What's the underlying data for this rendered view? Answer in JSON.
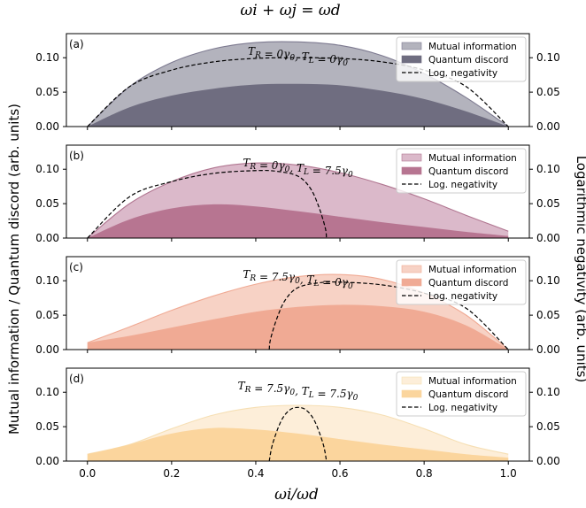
{
  "chart_data": {
    "type": "area",
    "title": "ωi + ωj = ωd",
    "xlabel": "ωi/ωd",
    "ylabel_left": "Mutual information / Quantum discord (arb. units)",
    "ylabel_right": "Logarithmic negativity (arb. units)",
    "xlim": [
      -0.05,
      1.05
    ],
    "ylim": [
      0,
      0.135
    ],
    "x_ticks": [
      "0.0",
      "0.2",
      "0.4",
      "0.6",
      "0.8",
      "1.0"
    ],
    "y_ticks": [
      "0.00",
      "0.05",
      "0.10"
    ],
    "legend_labels": [
      "Mutual information",
      "Quantum discord",
      "Log. negativity"
    ],
    "legend_position": "top-right",
    "panels": [
      {
        "label": "(a)",
        "temperature_label": "T_R = 0γ0, T_L = 0γ0",
        "colors": {
          "mutual": "#b3b3bd",
          "discord": "#6f6d80",
          "edge": "#7d7a90"
        },
        "x": [
          0.0,
          0.1,
          0.2,
          0.3,
          0.4,
          0.5,
          0.6,
          0.7,
          0.8,
          0.9,
          1.0
        ],
        "mutual_information": [
          0.0,
          0.058,
          0.093,
          0.113,
          0.122,
          0.123,
          0.118,
          0.103,
          0.077,
          0.042,
          0.0
        ],
        "quantum_discord": [
          0.0,
          0.028,
          0.045,
          0.055,
          0.061,
          0.062,
          0.06,
          0.052,
          0.04,
          0.022,
          0.0
        ],
        "log_negativity": [
          0.0,
          0.058,
          0.082,
          0.094,
          0.099,
          0.1,
          0.099,
          0.094,
          0.082,
          0.058,
          0.0
        ]
      },
      {
        "label": "(b)",
        "temperature_label": "T_R = 0γ0, T_L = 7.5γ0",
        "colors": {
          "mutual": "#dbb9ca",
          "discord": "#b77591",
          "edge": "#b07590"
        },
        "x": [
          0.0,
          0.1,
          0.2,
          0.3,
          0.4,
          0.5,
          0.6,
          0.7,
          0.8,
          0.9,
          1.0
        ],
        "mutual_information": [
          0.0,
          0.05,
          0.082,
          0.102,
          0.109,
          0.106,
          0.095,
          0.078,
          0.057,
          0.033,
          0.01
        ],
        "quantum_discord": [
          0.0,
          0.027,
          0.043,
          0.049,
          0.046,
          0.039,
          0.031,
          0.023,
          0.016,
          0.009,
          0.003
        ],
        "log_negativity_x": [
          0.0,
          0.1,
          0.2,
          0.3,
          0.4,
          0.45,
          0.5,
          0.53,
          0.55,
          0.565,
          0.568
        ],
        "log_negativity": [
          0.0,
          0.06,
          0.082,
          0.094,
          0.098,
          0.097,
          0.09,
          0.072,
          0.045,
          0.015,
          0.0
        ]
      },
      {
        "label": "(c)",
        "temperature_label": "T_R = 7.5γ0, T_L = 0γ0",
        "colors": {
          "mutual": "#f7d2c5",
          "discord": "#f0aa94",
          "edge": "#f0aa94"
        },
        "x": [
          0.0,
          0.1,
          0.2,
          0.3,
          0.4,
          0.5,
          0.6,
          0.7,
          0.8,
          0.9,
          1.0
        ],
        "mutual_information": [
          0.01,
          0.033,
          0.057,
          0.078,
          0.095,
          0.106,
          0.109,
          0.102,
          0.082,
          0.05,
          0.0
        ],
        "quantum_discord": [
          0.01,
          0.02,
          0.032,
          0.044,
          0.055,
          0.062,
          0.065,
          0.063,
          0.055,
          0.035,
          0.0
        ],
        "log_negativity_x": [
          0.432,
          0.435,
          0.45,
          0.47,
          0.5,
          0.55,
          0.6,
          0.7,
          0.8,
          0.9,
          1.0
        ],
        "log_negativity": [
          0.0,
          0.015,
          0.045,
          0.072,
          0.09,
          0.097,
          0.098,
          0.094,
          0.082,
          0.06,
          0.0
        ]
      },
      {
        "label": "(d)",
        "temperature_label": "T_R = 7.5γ0, T_L = 7.5γ0",
        "colors": {
          "mutual": "#fdeed9",
          "discord": "#fbd59d",
          "edge": "#f6dfb4"
        },
        "x": [
          0.0,
          0.1,
          0.2,
          0.3,
          0.4,
          0.5,
          0.6,
          0.7,
          0.8,
          0.9,
          1.0
        ],
        "mutual_information": [
          0.01,
          0.024,
          0.047,
          0.067,
          0.078,
          0.081,
          0.078,
          0.067,
          0.047,
          0.024,
          0.01
        ],
        "quantum_discord": [
          0.01,
          0.024,
          0.04,
          0.048,
          0.046,
          0.04,
          0.032,
          0.024,
          0.017,
          0.01,
          0.005
        ],
        "log_negativity_x": [
          0.432,
          0.44,
          0.46,
          0.48,
          0.5,
          0.52,
          0.54,
          0.56,
          0.568
        ],
        "log_negativity": [
          0.0,
          0.025,
          0.058,
          0.074,
          0.078,
          0.074,
          0.058,
          0.025,
          0.0
        ]
      }
    ]
  }
}
